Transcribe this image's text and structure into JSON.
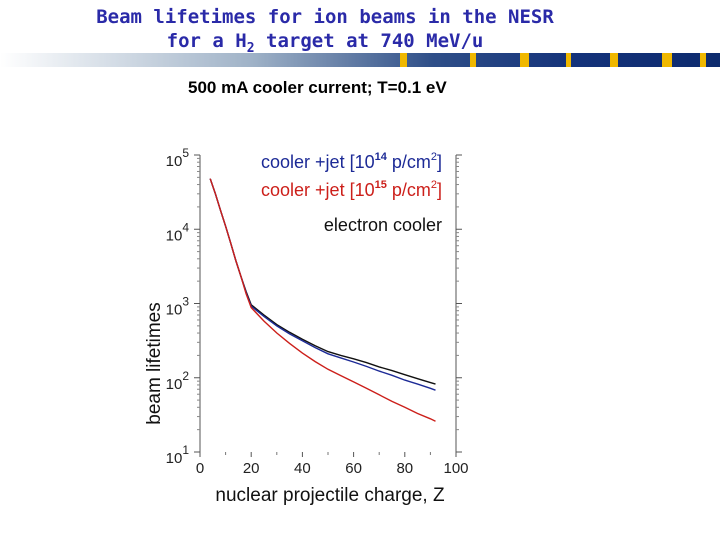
{
  "header": {
    "title_line1": "Beam lifetimes for ion beams in the NESR",
    "title_line2_pre": "for a H",
    "title_line2_sub": "2",
    "title_line2_post": " target at 740 MeV/u"
  },
  "subtitle": "500 mA cooler current; T=0.1 eV",
  "chart_data": {
    "type": "line",
    "title": "",
    "xlabel": "nuclear projectile charge, Z",
    "ylabel": "beam lifetimes",
    "xlim": [
      0,
      100
    ],
    "ylim": [
      10,
      100000
    ],
    "y_scale": "log",
    "grid": false,
    "x_ticks": [
      "0",
      "20",
      "40",
      "60",
      "80",
      "100"
    ],
    "y_ticks": [
      {
        "base": "10",
        "exp": "1"
      },
      {
        "base": "10",
        "exp": "2"
      },
      {
        "base": "10",
        "exp": "3"
      },
      {
        "base": "10",
        "exp": "4"
      },
      {
        "base": "10",
        "exp": "5"
      }
    ],
    "legend": [
      {
        "pre": "cooler +jet [10",
        "sup": "14",
        "mid": " p/cm",
        "sup2": "2",
        "post": "]",
        "color": "#1c2a96"
      },
      {
        "pre": "cooler +jet [10",
        "sup": "15",
        "mid": " p/cm",
        "sup2": "2",
        "post": "]",
        "color": "#cc1f1a"
      },
      {
        "pre": "electron cooler",
        "sup": "",
        "mid": "",
        "sup2": "",
        "post": "",
        "color": "#111111"
      }
    ],
    "series": [
      {
        "color": "#111111",
        "x": [
          4,
          6,
          8,
          10,
          12,
          14,
          16,
          18,
          20,
          25,
          30,
          35,
          40,
          45,
          50,
          55,
          60,
          65,
          70,
          75,
          80,
          85,
          90,
          92
        ],
        "y": [
          48000,
          30000,
          18000,
          11000,
          6500,
          3800,
          2300,
          1450,
          960,
          700,
          520,
          410,
          330,
          270,
          225,
          200,
          180,
          160,
          140,
          125,
          110,
          97,
          86,
          82
        ]
      },
      {
        "color": "#1c2a96",
        "x": [
          4,
          6,
          8,
          10,
          12,
          14,
          16,
          18,
          20,
          25,
          30,
          35,
          40,
          45,
          50,
          55,
          60,
          65,
          70,
          75,
          80,
          85,
          90,
          92
        ],
        "y": [
          48000,
          30000,
          18000,
          11000,
          6500,
          3800,
          2300,
          1400,
          920,
          670,
          500,
          390,
          315,
          255,
          210,
          185,
          163,
          142,
          123,
          108,
          93,
          82,
          72,
          68
        ]
      },
      {
        "color": "#cc1f1a",
        "x": [
          4,
          6,
          8,
          10,
          12,
          14,
          16,
          18,
          20,
          25,
          30,
          35,
          40,
          45,
          50,
          55,
          60,
          65,
          70,
          75,
          80,
          85,
          90,
          92
        ],
        "y": [
          48000,
          30000,
          18000,
          11000,
          6500,
          3800,
          2300,
          1350,
          880,
          580,
          400,
          290,
          215,
          165,
          130,
          107,
          88,
          72,
          59,
          48,
          40,
          33,
          28,
          26
        ]
      }
    ]
  }
}
